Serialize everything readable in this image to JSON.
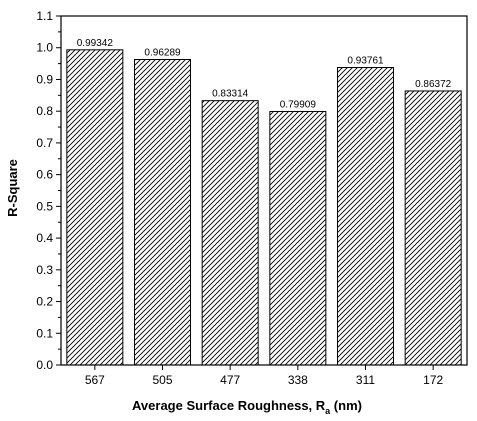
{
  "chart_data": {
    "type": "bar",
    "categories": [
      "567",
      "505",
      "477",
      "338",
      "311",
      "172"
    ],
    "values": [
      0.99342,
      0.96289,
      0.83314,
      0.79909,
      0.93761,
      0.86372
    ],
    "data_labels": [
      "0.99342",
      "0.96289",
      "0.83314",
      "0.79909",
      "0.93761",
      "0.86372"
    ],
    "ylim": [
      0.0,
      1.1
    ],
    "yticks": [
      "0.0",
      "0.1",
      "0.2",
      "0.3",
      "0.4",
      "0.5",
      "0.6",
      "0.7",
      "0.8",
      "0.9",
      "1.0",
      "1.1"
    ],
    "ylabel": "R-Square",
    "xlabel": "Average Surface Roughness, R",
    "xlabel_subscript": "a",
    "xlabel_suffix": " (nm)",
    "bar_fill": "diagonal-hatch",
    "bar_color": "#000000",
    "grid": false,
    "legend": "none"
  }
}
